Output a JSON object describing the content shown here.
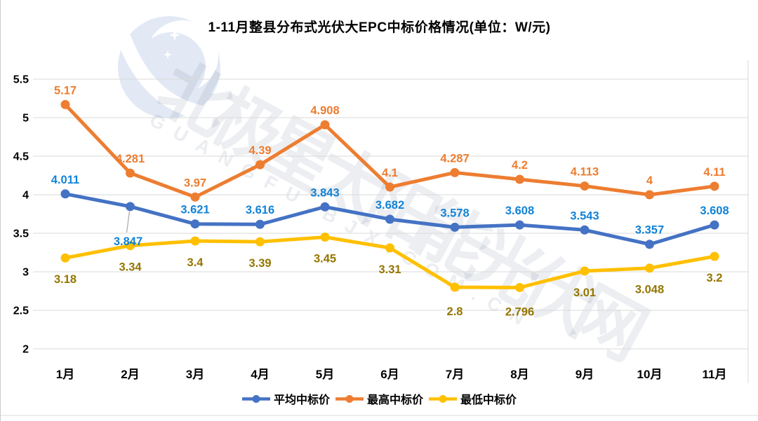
{
  "watermark": {
    "text_cn": "北极星太阳能光伏网",
    "text_en": "GUANGFU.BJX.COM.CN",
    "logo": "bjx-polaris-moon-stars-logo",
    "logo_color": "#e2e9f5"
  },
  "chart_data": {
    "type": "line",
    "title": "1-11月整县分布式光伏大EPC中标价格情况(单位：W/元)",
    "unit": "W/元",
    "categories": [
      "1月",
      "2月",
      "3月",
      "4月",
      "5月",
      "6月",
      "7月",
      "8月",
      "9月",
      "10月",
      "11月"
    ],
    "series": [
      {
        "name": "平均中标价",
        "color": "#4472C4",
        "label_color": "#1283D6",
        "values": [
          4.011,
          3.847,
          3.621,
          3.616,
          3.843,
          3.682,
          3.578,
          3.608,
          3.543,
          3.357,
          3.608
        ]
      },
      {
        "name": "最高中标价",
        "color": "#ED7D31",
        "label_color": "#ED7D31",
        "values": [
          5.17,
          4.281,
          3.97,
          4.39,
          4.908,
          4.1,
          4.287,
          4.2,
          4.113,
          4,
          4.11
        ]
      },
      {
        "name": "最低中标价",
        "color": "#FFC000",
        "label_color": "#947600",
        "values": [
          3.18,
          3.34,
          3.4,
          3.39,
          3.45,
          3.31,
          2.8,
          2.796,
          3.01,
          3.048,
          3.2
        ]
      }
    ],
    "y_ticks": [
      5.5,
      5,
      4.5,
      4,
      3.5,
      3,
      2.5,
      2
    ],
    "ylim": [
      2,
      5.5
    ],
    "grid": true,
    "grid_color": "#D9D9D9",
    "leader_line_color": "#A6A6A6",
    "legend_position": "bottom",
    "xlabel": "",
    "ylabel": ""
  }
}
